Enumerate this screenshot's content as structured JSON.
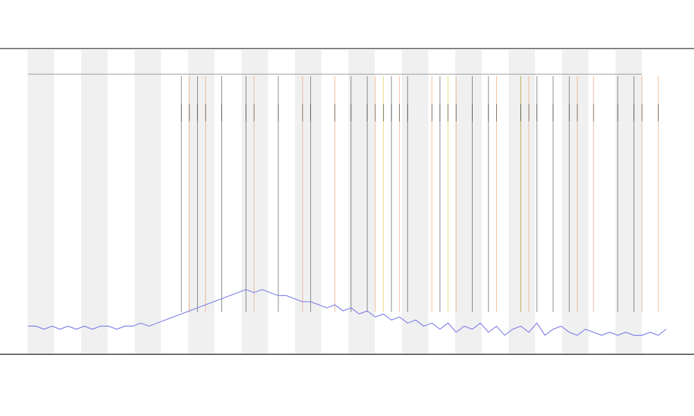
{
  "chart_data": {
    "type": "line",
    "xlim": [
      0,
      79
    ],
    "ylim": [
      0,
      100
    ],
    "series": [
      {
        "color": "#7f7fe8",
        "values": [
          9,
          9,
          8,
          9,
          8,
          9,
          8,
          9,
          8,
          9,
          9,
          8,
          9,
          9,
          10,
          9,
          10,
          11,
          12,
          13,
          14,
          15,
          16,
          17,
          18,
          19,
          20,
          21,
          20,
          21,
          20,
          19,
          19,
          18,
          17,
          17,
          16,
          15,
          16,
          14,
          15,
          13,
          14,
          12,
          13,
          11,
          12,
          10,
          11,
          9,
          10,
          8,
          10,
          7,
          9,
          8,
          10,
          7,
          9,
          6,
          8,
          9,
          7,
          10,
          6,
          8,
          9,
          7,
          6,
          8,
          7,
          6,
          7,
          6,
          7,
          6,
          6,
          7,
          6,
          8
        ]
      }
    ],
    "event_series": [
      {
        "color": "#e8a070",
        "x": [
          20,
          22,
          28,
          34,
          38,
          43,
          46,
          50,
          53,
          58,
          62,
          68,
          70,
          76,
          78
        ]
      },
      {
        "color": "#555555",
        "x": [
          19,
          21,
          24,
          27,
          31,
          35,
          40,
          42,
          45,
          47,
          51,
          55,
          57,
          61,
          63,
          65,
          67,
          73,
          75
        ]
      },
      {
        "color": "#e0d040",
        "x": [
          44,
          52,
          61
        ]
      }
    ]
  }
}
